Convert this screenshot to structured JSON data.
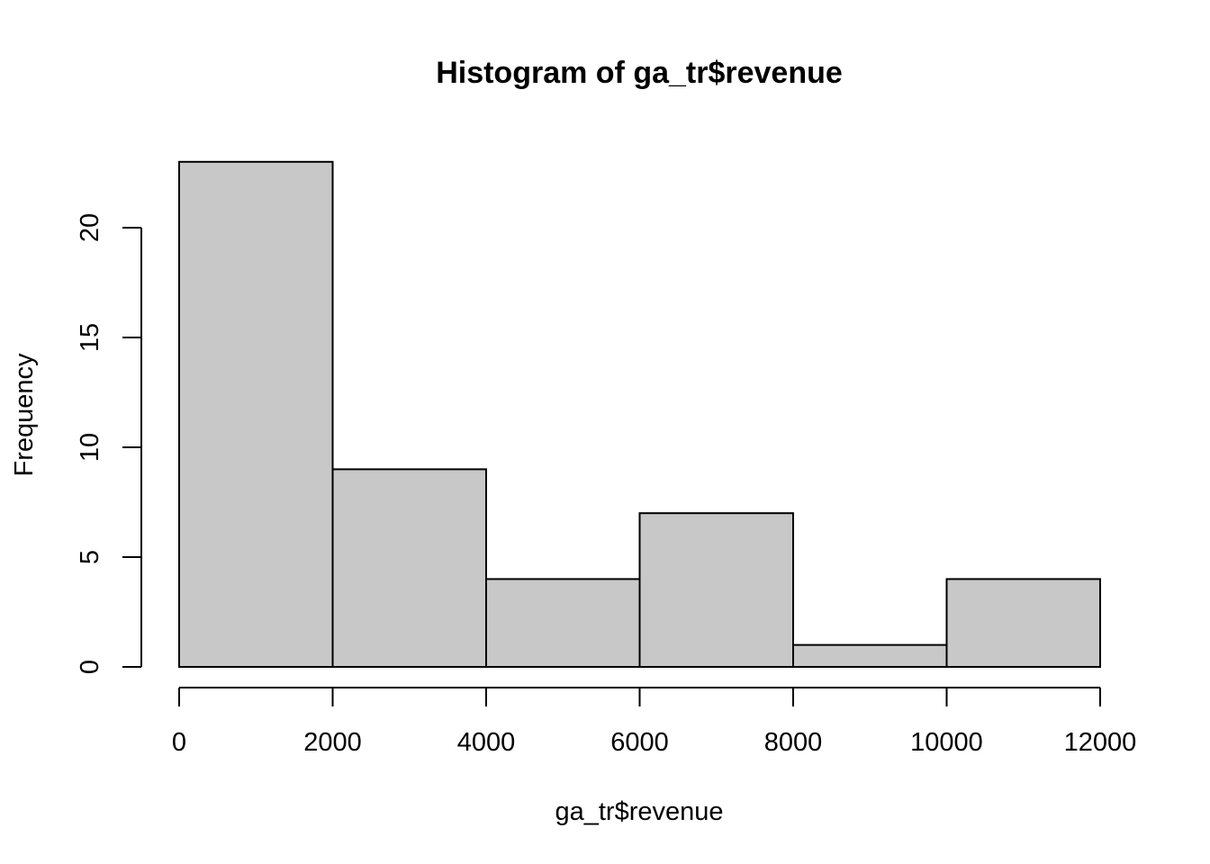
{
  "chart_data": {
    "type": "bar",
    "subtype": "histogram",
    "title": "Histogram of ga_tr$revenue",
    "xlabel": "ga_tr$revenue",
    "ylabel": "Frequency",
    "bins": [
      {
        "from": 0,
        "to": 2000,
        "count": 23
      },
      {
        "from": 2000,
        "to": 4000,
        "count": 9
      },
      {
        "from": 4000,
        "to": 6000,
        "count": 4
      },
      {
        "from": 6000,
        "to": 8000,
        "count": 7
      },
      {
        "from": 8000,
        "to": 10000,
        "count": 1
      },
      {
        "from": 10000,
        "to": 12000,
        "count": 4
      }
    ],
    "xlim": [
      0,
      12000
    ],
    "ylim": [
      0,
      23
    ],
    "xticks": [
      0,
      2000,
      4000,
      6000,
      8000,
      10000,
      12000
    ],
    "xtick_labels": [
      "0",
      "2000",
      "4000",
      "6000",
      "8000",
      "10000",
      "12000"
    ],
    "yticks": [
      0,
      5,
      10,
      15,
      20
    ],
    "ytick_labels": [
      "0",
      "5",
      "10",
      "15",
      "20"
    ],
    "grid": false,
    "legend": "none",
    "bar_color": "#c8c8c8",
    "edge_color": "#000000"
  }
}
